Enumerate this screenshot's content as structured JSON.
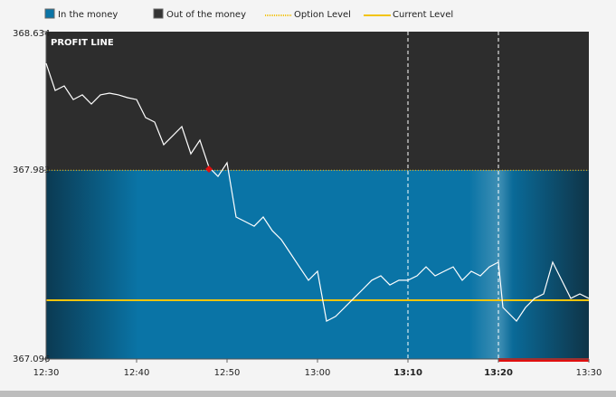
{
  "chart_data": {
    "type": "line",
    "title": "PROFIT LINE",
    "legend": [
      {
        "name": "In the money",
        "color": "#0a74a6"
      },
      {
        "name": "Out of the money",
        "color": "#333333"
      },
      {
        "name": "Option Level",
        "color": "#f2c40c",
        "style": "dotted"
      },
      {
        "name": "Current Level",
        "color": "#f2c40c",
        "style": "solid"
      }
    ],
    "option_level": 367.983,
    "current_level": 367.372,
    "ylim": [
      367.096,
      368.634
    ],
    "yticks": [
      368.634,
      367.983,
      367.096
    ],
    "xlim": [
      0,
      60
    ],
    "xticks": [
      {
        "value": 0,
        "label": "12:30"
      },
      {
        "value": 10,
        "label": "12:40"
      },
      {
        "value": 20,
        "label": "12:50"
      },
      {
        "value": 30,
        "label": "13:00"
      },
      {
        "value": 40,
        "label": "13:10"
      },
      {
        "value": 50,
        "label": "13:20"
      },
      {
        "value": 60,
        "label": "13:30"
      }
    ],
    "x": [
      0,
      1,
      2,
      3,
      4,
      5,
      6,
      7,
      8,
      9,
      10,
      11,
      12,
      13,
      14,
      15,
      16,
      17,
      18,
      19,
      20,
      21,
      22,
      23,
      24,
      25,
      26,
      27,
      28,
      29,
      30,
      31,
      32,
      33,
      34,
      35,
      36,
      37,
      38,
      39,
      40,
      41,
      42,
      43,
      44,
      45,
      46,
      47,
      48,
      49,
      50,
      50.5,
      51,
      52,
      53,
      54,
      55,
      56,
      57,
      58,
      59,
      60
    ],
    "series": [
      {
        "color": "#ffffff",
        "values": [
          368.485,
          368.358,
          368.379,
          368.315,
          368.337,
          368.294,
          368.337,
          368.345,
          368.337,
          368.324,
          368.315,
          368.23,
          368.209,
          368.103,
          368.145,
          368.188,
          368.06,
          368.124,
          367.997,
          367.954,
          368.018,
          367.763,
          367.742,
          367.72,
          367.763,
          367.699,
          367.657,
          367.593,
          367.529,
          367.466,
          367.508,
          367.274,
          367.296,
          367.338,
          367.381,
          367.423,
          367.466,
          367.487,
          367.444,
          367.466,
          367.466,
          367.487,
          367.529,
          367.487,
          367.508,
          367.529,
          367.466,
          367.508,
          367.487,
          367.529,
          367.551,
          367.338,
          367.317,
          367.274,
          367.338,
          367.381,
          367.402,
          367.551,
          367.466,
          367.381,
          367.402,
          367.381
        ]
      }
    ]
  }
}
